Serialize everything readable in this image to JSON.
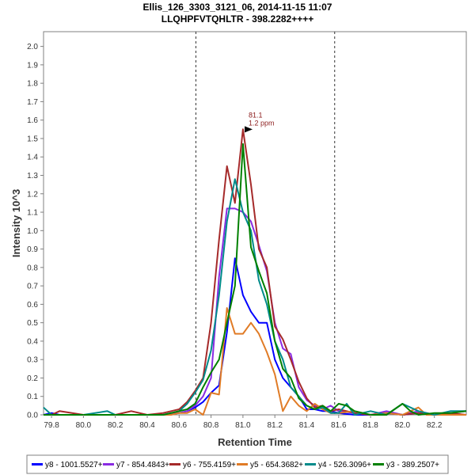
{
  "chart_data": {
    "type": "line",
    "title": "Ellis_126_3303_3121_06, 2014-11-15 11:07",
    "subtitle": "LLQHPFVTQHLTR - 398.2282++++",
    "xlabel": "Retention Time",
    "ylabel": "Intensity 10^3",
    "xlim": [
      79.75,
      82.4
    ],
    "ylim": [
      0,
      2.08
    ],
    "xticks": [
      "79.8",
      "80.0",
      "80.2",
      "80.4",
      "80.6",
      "80.8",
      "81.0",
      "81.2",
      "81.4",
      "81.6",
      "81.8",
      "82.0",
      "82.2"
    ],
    "yticks": [
      "0.0",
      "0.1",
      "0.2",
      "0.3",
      "0.4",
      "0.5",
      "0.6",
      "0.7",
      "0.8",
      "0.9",
      "1.0",
      "1.1",
      "1.2",
      "1.3",
      "1.4",
      "1.5",
      "1.6",
      "1.7",
      "1.8",
      "1.9",
      "2.0"
    ],
    "integration_bounds": [
      80.705,
      81.575
    ],
    "annotation": {
      "x": 81.07,
      "y": 1.55,
      "line1": "81.1",
      "line2": "1.2 ppm",
      "color": "#8b1a1a"
    },
    "grid": false,
    "legend_position": "bottom",
    "series": [
      {
        "name": "y8 - 1001.5527+",
        "color": "#0000ff",
        "x": [
          79.75,
          79.8,
          79.85,
          80.0,
          80.2,
          80.4,
          80.5,
          80.55,
          80.6,
          80.65,
          80.7,
          80.75,
          80.8,
          80.85,
          80.9,
          80.95,
          81.0,
          81.05,
          81.1,
          81.15,
          81.2,
          81.25,
          81.3,
          81.35,
          81.4,
          81.45,
          81.5,
          81.55,
          81.6,
          81.7,
          81.8,
          81.9,
          82.0,
          82.1,
          82.2,
          82.3,
          82.4
        ],
        "y": [
          0.0,
          0.01,
          0.0,
          0.0,
          0.0,
          0.0,
          0.0,
          0.01,
          0.01,
          0.02,
          0.04,
          0.07,
          0.12,
          0.16,
          0.45,
          0.85,
          0.65,
          0.56,
          0.5,
          0.5,
          0.3,
          0.2,
          0.15,
          0.1,
          0.03,
          0.03,
          0.02,
          0.02,
          0.01,
          0.0,
          0.0,
          0.01,
          0.0,
          0.01,
          0.0,
          0.0,
          0.0
        ]
      },
      {
        "name": "y7 - 854.4843+",
        "color": "#8a2be2",
        "x": [
          79.75,
          79.8,
          79.9,
          80.0,
          80.2,
          80.4,
          80.5,
          80.55,
          80.6,
          80.65,
          80.7,
          80.75,
          80.8,
          80.85,
          80.9,
          80.95,
          81.0,
          81.05,
          81.1,
          81.15,
          81.2,
          81.25,
          81.3,
          81.35,
          81.4,
          81.45,
          81.5,
          81.55,
          81.6,
          81.7,
          81.8,
          81.9,
          82.0,
          82.1,
          82.2,
          82.3,
          82.4
        ],
        "y": [
          0.0,
          0.0,
          0.0,
          0.0,
          0.0,
          0.0,
          0.0,
          0.01,
          0.01,
          0.02,
          0.05,
          0.1,
          0.2,
          0.75,
          1.12,
          1.12,
          1.1,
          1.05,
          0.92,
          0.78,
          0.5,
          0.36,
          0.33,
          0.15,
          0.08,
          0.05,
          0.03,
          0.05,
          0.02,
          0.01,
          0.0,
          0.02,
          0.0,
          0.02,
          0.0,
          0.01,
          0.02
        ]
      },
      {
        "name": "y6 - 755.4159+",
        "color": "#a52a2a",
        "x": [
          79.75,
          79.8,
          79.85,
          80.0,
          80.2,
          80.3,
          80.4,
          80.5,
          80.55,
          80.6,
          80.65,
          80.7,
          80.75,
          80.8,
          80.85,
          80.9,
          80.95,
          81.0,
          81.05,
          81.1,
          81.15,
          81.2,
          81.25,
          81.3,
          81.35,
          81.4,
          81.45,
          81.5,
          81.55,
          81.6,
          81.7,
          81.8,
          81.9,
          82.0,
          82.1,
          82.2,
          82.3,
          82.4
        ],
        "y": [
          0.0,
          0.0,
          0.02,
          0.0,
          0.0,
          0.02,
          0.0,
          0.01,
          0.02,
          0.03,
          0.07,
          0.13,
          0.2,
          0.5,
          0.95,
          1.35,
          1.15,
          1.55,
          1.25,
          0.9,
          0.8,
          0.48,
          0.41,
          0.3,
          0.18,
          0.09,
          0.04,
          0.05,
          0.02,
          0.03,
          0.01,
          0.0,
          0.01,
          0.0,
          0.01,
          0.0,
          0.01,
          0.0
        ]
      },
      {
        "name": "y5 - 654.3682+",
        "color": "#e07b26",
        "x": [
          79.75,
          79.8,
          79.9,
          80.0,
          80.2,
          80.4,
          80.5,
          80.55,
          80.6,
          80.65,
          80.7,
          80.75,
          80.8,
          80.85,
          80.9,
          80.95,
          81.0,
          81.05,
          81.1,
          81.15,
          81.2,
          81.25,
          81.3,
          81.35,
          81.4,
          81.45,
          81.5,
          81.55,
          81.6,
          81.7,
          81.8,
          81.9,
          82.0,
          82.1,
          82.15,
          82.2,
          82.3,
          82.4
        ],
        "y": [
          0.0,
          0.0,
          0.0,
          0.0,
          0.0,
          0.0,
          0.0,
          0.0,
          0.01,
          0.01,
          0.03,
          0.0,
          0.12,
          0.11,
          0.58,
          0.44,
          0.44,
          0.5,
          0.44,
          0.34,
          0.22,
          0.02,
          0.1,
          0.05,
          0.02,
          0.06,
          0.03,
          0.01,
          0.01,
          0.02,
          0.0,
          0.01,
          0.0,
          0.04,
          0.0,
          0.0,
          0.0,
          0.0
        ]
      },
      {
        "name": "y4 - 526.3096+",
        "color": "#008b8b",
        "x": [
          79.75,
          79.8,
          79.85,
          80.0,
          80.15,
          80.2,
          80.4,
          80.5,
          80.55,
          80.6,
          80.65,
          80.7,
          80.75,
          80.8,
          80.85,
          80.9,
          80.95,
          81.0,
          81.05,
          81.1,
          81.15,
          81.2,
          81.25,
          81.3,
          81.35,
          81.4,
          81.45,
          81.5,
          81.55,
          81.6,
          81.65,
          81.7,
          81.8,
          81.9,
          82.0,
          82.1,
          82.2,
          82.3,
          82.4
        ],
        "y": [
          0.04,
          0.0,
          0.0,
          0.0,
          0.02,
          0.0,
          0.0,
          0.0,
          0.01,
          0.02,
          0.06,
          0.12,
          0.19,
          0.35,
          0.65,
          1.05,
          1.28,
          1.1,
          1.0,
          0.73,
          0.6,
          0.4,
          0.3,
          0.15,
          0.1,
          0.05,
          0.03,
          0.04,
          0.01,
          0.01,
          0.06,
          0.0,
          0.02,
          0.0,
          0.06,
          0.02,
          0.0,
          0.02,
          0.02
        ]
      },
      {
        "name": "y3 - 389.2507+",
        "color": "#008000",
        "x": [
          79.75,
          79.8,
          79.9,
          80.0,
          80.2,
          80.4,
          80.5,
          80.55,
          80.6,
          80.65,
          80.7,
          80.75,
          80.8,
          80.85,
          80.9,
          80.95,
          81.0,
          81.05,
          81.1,
          81.15,
          81.2,
          81.25,
          81.3,
          81.35,
          81.4,
          81.45,
          81.5,
          81.55,
          81.6,
          81.65,
          81.7,
          81.8,
          81.9,
          82.0,
          82.05,
          82.1,
          82.2,
          82.3,
          82.4
        ],
        "y": [
          0.0,
          0.0,
          0.0,
          0.0,
          0.0,
          0.0,
          0.0,
          0.01,
          0.02,
          0.03,
          0.06,
          0.15,
          0.23,
          0.3,
          0.5,
          0.7,
          1.47,
          0.91,
          0.78,
          0.66,
          0.4,
          0.25,
          0.2,
          0.09,
          0.05,
          0.03,
          0.05,
          0.02,
          0.06,
          0.05,
          0.02,
          0.0,
          0.0,
          0.06,
          0.02,
          0.0,
          0.01,
          0.01,
          0.02
        ]
      }
    ]
  }
}
